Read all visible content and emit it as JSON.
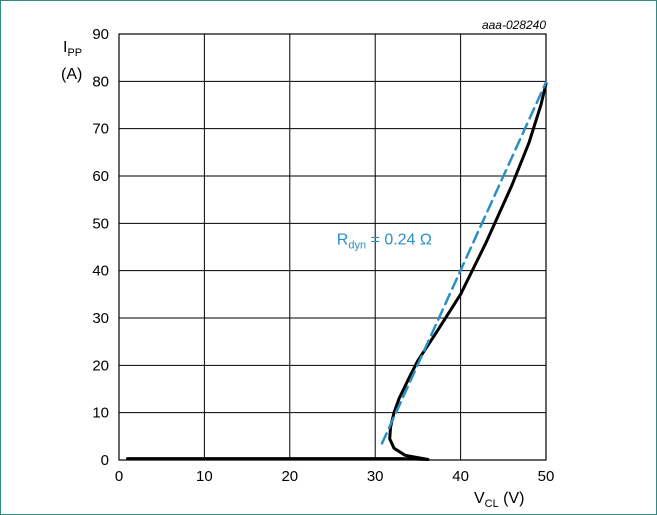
{
  "figure_id": "aaa-028240",
  "colors": {
    "frame": "#2f8a86",
    "curve": "#000000",
    "fit_line": "#2a8fc4",
    "grid": "#000000"
  },
  "chart_data": {
    "type": "line",
    "title": "",
    "xlabel": {
      "main": "V",
      "sub": "CL",
      "unit": " (V)"
    },
    "ylabel": {
      "main": "I",
      "sub": "PP",
      "unit": "(A)"
    },
    "xlim": [
      0,
      50
    ],
    "ylim": [
      0,
      90
    ],
    "xticks": [
      0,
      10,
      20,
      30,
      40,
      50
    ],
    "yticks": [
      0,
      10,
      20,
      30,
      40,
      50,
      60,
      70,
      80,
      90
    ],
    "grid": true,
    "series": [
      {
        "style": "solid-black",
        "points": [
          [
            1,
            0.3
          ],
          [
            10,
            0.3
          ],
          [
            20,
            0.3
          ],
          [
            30,
            0.3
          ],
          [
            33,
            0.3
          ],
          [
            35,
            0.2
          ],
          [
            36.2,
            0.1
          ],
          [
            33.5,
            1.0
          ],
          [
            32.2,
            2.5
          ],
          [
            31.7,
            4.5
          ],
          [
            31.8,
            7.0
          ],
          [
            32.2,
            10.0
          ],
          [
            32.8,
            13.0
          ],
          [
            34,
            17.5
          ],
          [
            35,
            21.0
          ],
          [
            37,
            26.5
          ],
          [
            40,
            35.0
          ],
          [
            43,
            46.0
          ],
          [
            46,
            58.0
          ],
          [
            48,
            67.0
          ],
          [
            49.4,
            75.0
          ],
          [
            50,
            79.5
          ]
        ]
      },
      {
        "style": "dashed-blue",
        "points": [
          [
            30.8,
            3.5
          ],
          [
            50,
            79.8
          ]
        ]
      }
    ],
    "annotations": [
      {
        "text_main": "R",
        "text_sub": "dyn",
        "text_rest": " = 0.24 Ω",
        "x": 25.5,
        "y": 45.5
      }
    ]
  }
}
